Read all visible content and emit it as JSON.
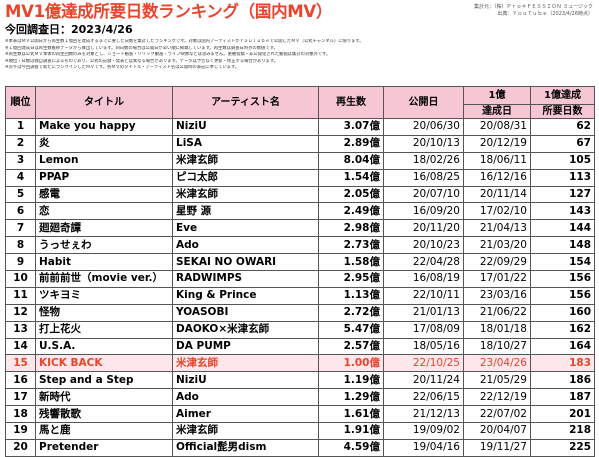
{
  "header": {
    "title": "MV1億達成所要日数ランキング（国内MV）",
    "credit_line1": "集計元：（株）Ｐｒｏ＊ＦＥＳＳＩＯＮ ミュージック",
    "credit_line2": "出典：ＹｏｕＴｕｂｅ（2023/4/26時点）",
    "survey_date": "今回調査日：2023/4/26"
  },
  "notes": [
    "※本表はＭＶ公開日から再生数１億回を達成するまでに要した日数を集計したランキングです。対象は国内アーティストがＹｏｕＴｕｂｅで公開したＭＶ（公式チャンネル）に限ります。",
    "※１億回達成日は再生数推移データから算出しています。同日数の場合は公開日が早い順に掲載しています。再生数は調査日時点の数値です。",
    "※再生数は公式ＭＶ本体の再生回数のみを対象とし、ショート動画・リリック動画・ライブ映像などは含みません。重複投稿・非公開化された動画は集計の対象外です。",
    "※順位・日数は独自調査によるものであり、公式の記録・発表とは異なる場合があります。データは予告なく更新・修正する場合があります。",
    "※赤字は今回調査で新たにランクインしたＭＶです。各ＭＶのタイトル・アーティスト名は公開時の表記に準じています。"
  ],
  "table": {
    "headers": {
      "rank": "順位",
      "title": "タイトル",
      "artist": "アーティスト名",
      "views": "再生数",
      "published": "公開日",
      "reach_top": "1億",
      "reach_bottom": "達成日",
      "days_top": "1億達成",
      "days_bottom": "所要日数"
    },
    "rows": [
      {
        "rank": "1",
        "title": "Make you happy",
        "artist": "NiziU",
        "views": "3.07億",
        "published": "20/06/30",
        "reached": "20/08/31",
        "days": "62"
      },
      {
        "rank": "2",
        "title": "炎",
        "artist": "LiSA",
        "views": "2.89億",
        "published": "20/10/13",
        "reached": "20/12/19",
        "days": "67"
      },
      {
        "rank": "3",
        "title": "Lemon",
        "artist": "米津玄師",
        "views": "8.04億",
        "published": "18/02/26",
        "reached": "18/06/11",
        "days": "105"
      },
      {
        "rank": "4",
        "title": "PPAP",
        "artist": "ピコ太郎",
        "views": "1.54億",
        "published": "16/08/25",
        "reached": "16/12/16",
        "days": "113"
      },
      {
        "rank": "5",
        "title": "感電",
        "artist": "米津玄師",
        "views": "2.05億",
        "published": "20/07/10",
        "reached": "20/11/14",
        "days": "127"
      },
      {
        "rank": "6",
        "title": "恋",
        "artist": "星野 源",
        "views": "2.49億",
        "published": "16/09/20",
        "reached": "17/02/10",
        "days": "143"
      },
      {
        "rank": "7",
        "title": "廻廻奇譚",
        "artist": "Eve",
        "views": "2.98億",
        "published": "20/11/20",
        "reached": "21/04/13",
        "days": "144"
      },
      {
        "rank": "8",
        "title": "うっせぇわ",
        "artist": "Ado",
        "views": "2.73億",
        "published": "20/10/23",
        "reached": "21/03/20",
        "days": "148"
      },
      {
        "rank": "9",
        "title": "Habit",
        "artist": "SEKAI NO OWARI",
        "views": "1.58億",
        "published": "22/04/28",
        "reached": "22/09/29",
        "days": "154"
      },
      {
        "rank": "10",
        "title": "前前前世（movie ver.）",
        "artist": "RADWIMPS",
        "views": "2.95億",
        "published": "16/08/19",
        "reached": "17/01/22",
        "days": "156"
      },
      {
        "rank": "11",
        "title": "ツキヨミ",
        "artist": "King & Prince",
        "views": "1.13億",
        "published": "22/10/11",
        "reached": "23/03/16",
        "days": "156"
      },
      {
        "rank": "12",
        "title": "怪物",
        "artist": "YOASOBI",
        "views": "2.72億",
        "published": "21/01/13",
        "reached": "21/06/22",
        "days": "160"
      },
      {
        "rank": "13",
        "title": "打上花火",
        "artist": "DAOKO×米津玄師",
        "views": "5.47億",
        "published": "17/08/09",
        "reached": "18/01/18",
        "days": "162"
      },
      {
        "rank": "14",
        "title": "U.S.A.",
        "artist": "DA PUMP",
        "views": "2.57億",
        "published": "18/05/16",
        "reached": "18/10/27",
        "days": "164"
      },
      {
        "rank": "15",
        "title": "KICK BACK",
        "artist": "米津玄師",
        "views": "1.00億",
        "published": "22/10/25",
        "reached": "23/04/26",
        "days": "183",
        "highlight": true
      },
      {
        "rank": "16",
        "title": "Step and a Step",
        "artist": "NiziU",
        "views": "1.19億",
        "published": "20/11/24",
        "reached": "21/05/29",
        "days": "186"
      },
      {
        "rank": "17",
        "title": "新時代",
        "artist": "Ado",
        "views": "1.29億",
        "published": "22/06/15",
        "reached": "22/12/19",
        "days": "187"
      },
      {
        "rank": "18",
        "title": "残響散歌",
        "artist": "Aimer",
        "views": "1.61億",
        "published": "21/12/13",
        "reached": "22/07/02",
        "days": "201"
      },
      {
        "rank": "19",
        "title": "馬と鹿",
        "artist": "米津玄師",
        "views": "1.91億",
        "published": "19/09/02",
        "reached": "20/04/07",
        "days": "218"
      },
      {
        "rank": "20",
        "title": "Pretender",
        "artist": "Official髭男dism",
        "views": "4.59億",
        "published": "19/04/16",
        "reached": "19/11/27",
        "days": "225"
      }
    ]
  },
  "colors": {
    "title": "#e8452c",
    "header_bg": "#f7c6d4",
    "highlight_text": "#e8452c",
    "highlight_bg": "#fde6ec"
  }
}
